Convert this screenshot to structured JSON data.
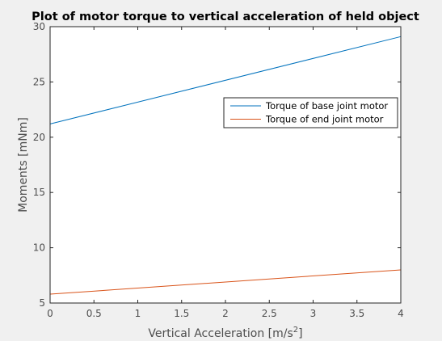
{
  "chart_data": {
    "type": "line",
    "title": "Plot of motor torque to vertical acceleration of held object",
    "xlabel": "Vertical Acceleration [m/s",
    "xlabel_sup": "2",
    "xlabel_end": "]",
    "ylabel": "Moments [mNm]",
    "xlim": [
      0,
      4
    ],
    "ylim": [
      5,
      30
    ],
    "xticks": [
      "0",
      "0.5",
      "1",
      "1.5",
      "2",
      "2.5",
      "3",
      "3.5",
      "4"
    ],
    "yticks": [
      "5",
      "10",
      "15",
      "20",
      "25",
      "30"
    ],
    "grid": false,
    "legend_position": "right",
    "series": [
      {
        "name": "Torque of base joint motor",
        "color": "#0072bd",
        "x": [
          0,
          4
        ],
        "y": [
          21.2,
          29.1
        ]
      },
      {
        "name": "Torque of end joint motor",
        "color": "#d95319",
        "x": [
          0,
          4
        ],
        "y": [
          5.8,
          8.0
        ]
      }
    ]
  }
}
